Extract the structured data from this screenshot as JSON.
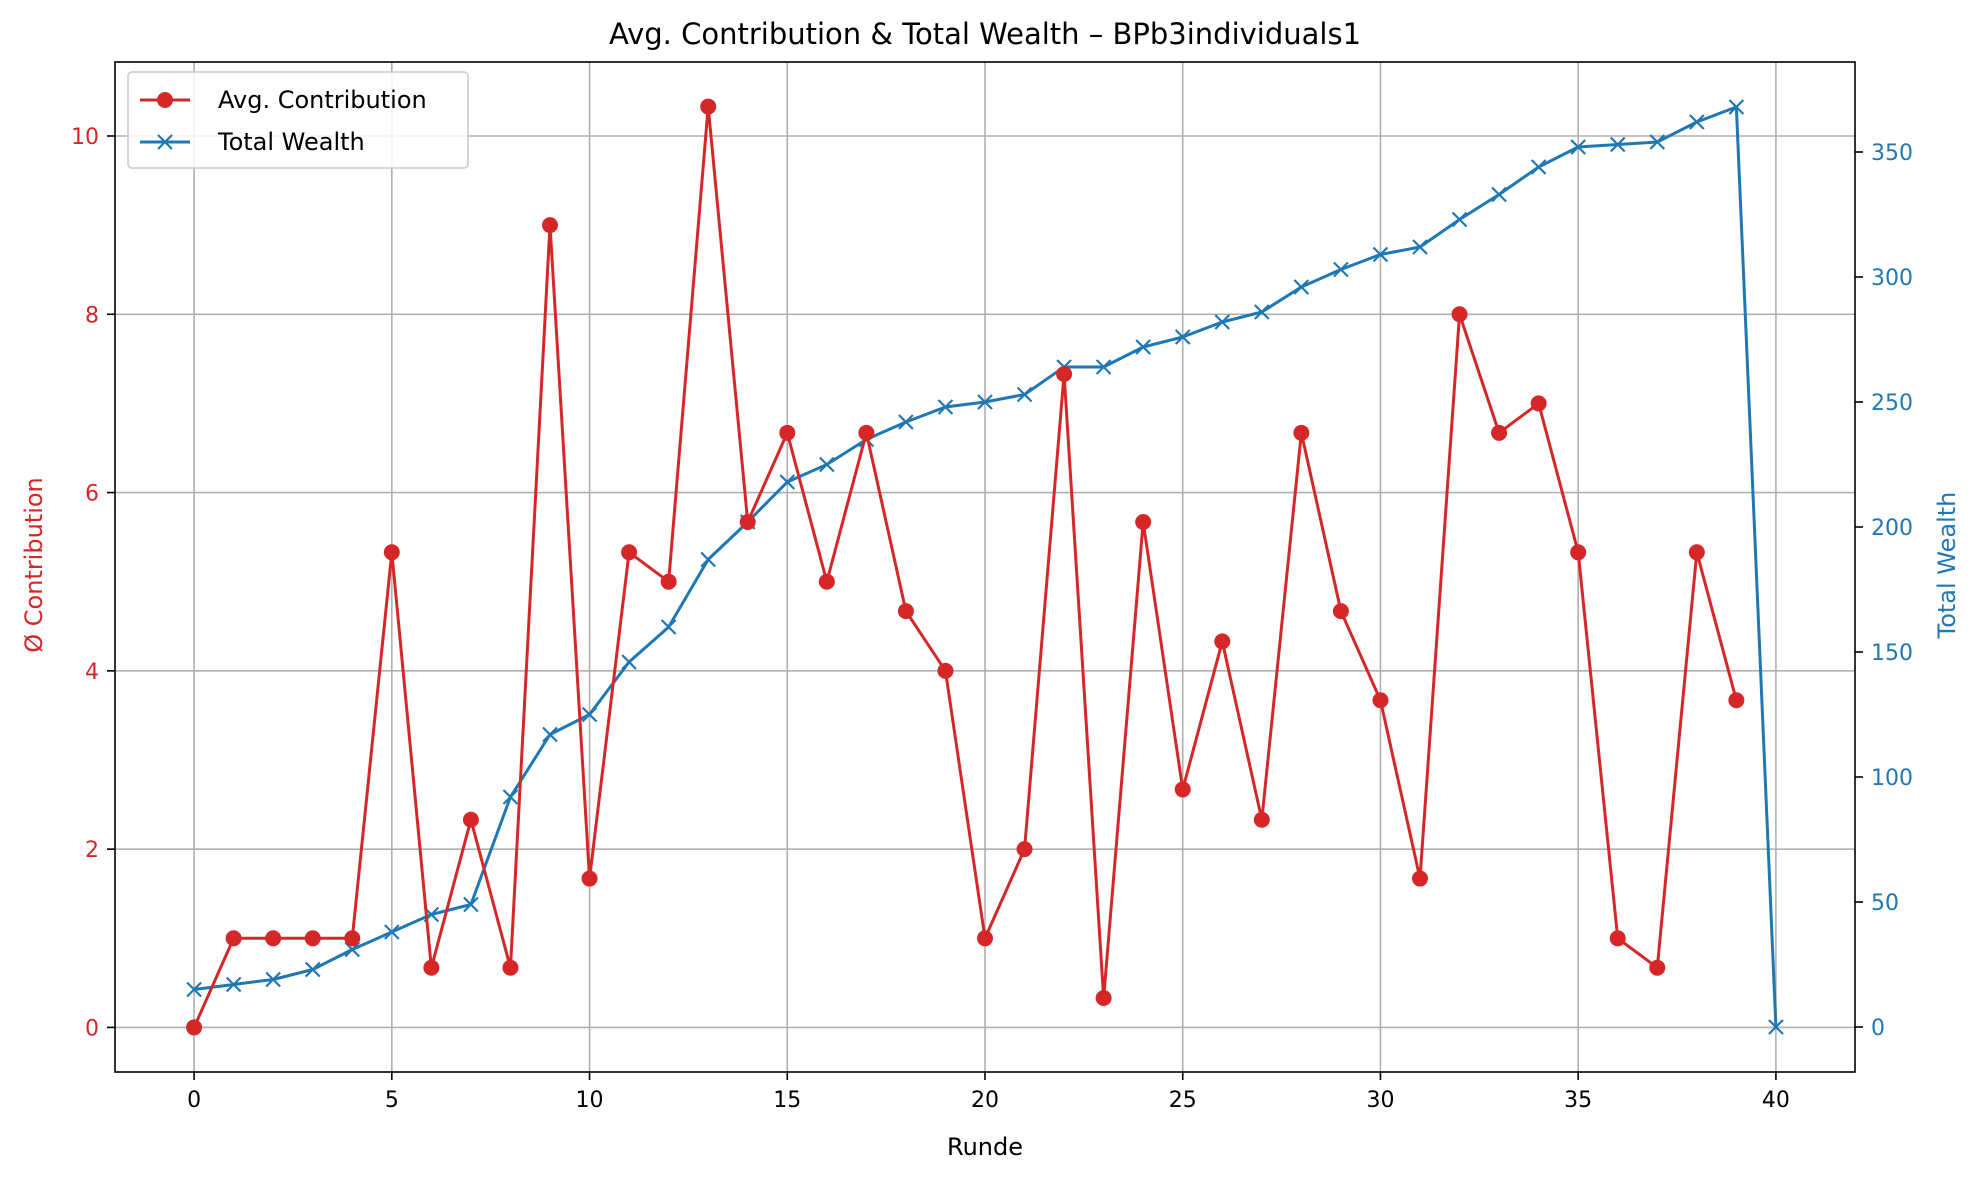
{
  "chart_data": {
    "type": "line",
    "title": "Avg. Contribution & Total Wealth – BPb3individuals1",
    "xlabel": "Runde",
    "ylabel_left": "Ø Contribution",
    "ylabel_right": "Total Wealth",
    "xlim": [
      -2,
      42
    ],
    "ylim_left": [
      -0.5,
      10.83
    ],
    "ylim_right": [
      -18,
      386
    ],
    "x_ticks": [
      0,
      5,
      10,
      15,
      20,
      25,
      30,
      35,
      40
    ],
    "y_ticks_left": [
      0,
      2,
      4,
      6,
      8,
      10
    ],
    "y_ticks_right": [
      0,
      50,
      100,
      150,
      200,
      250,
      300,
      350
    ],
    "grid": true,
    "legend_position": "upper-left",
    "colors": {
      "contribution": "#d62728",
      "wealth": "#1f77b4",
      "grid": "#b0b0b0"
    },
    "series": [
      {
        "name": "Avg. Contribution",
        "axis": "left",
        "marker": "circle",
        "x": [
          0,
          1,
          2,
          3,
          4,
          5,
          6,
          7,
          8,
          9,
          10,
          11,
          12,
          13,
          14,
          15,
          16,
          17,
          18,
          19,
          20,
          21,
          22,
          23,
          24,
          25,
          26,
          27,
          28,
          29,
          30,
          31,
          32,
          33,
          34,
          35,
          36,
          37,
          38,
          39
        ],
        "values": [
          0,
          1,
          1,
          1,
          1,
          5.33,
          0.67,
          2.33,
          0.67,
          9,
          1.67,
          5.33,
          5,
          10.33,
          5.67,
          6.67,
          5,
          6.67,
          4.67,
          4,
          1,
          2,
          7.33,
          0.33,
          5.67,
          2.67,
          4.33,
          2.33,
          6.67,
          4.67,
          3.67,
          1.67,
          8,
          6.67,
          7,
          5.33,
          1,
          0.67,
          5.33,
          3.67
        ]
      },
      {
        "name": "Total Wealth",
        "axis": "right",
        "marker": "x",
        "x": [
          0,
          1,
          2,
          3,
          4,
          5,
          6,
          7,
          8,
          9,
          10,
          11,
          12,
          13,
          14,
          15,
          16,
          17,
          18,
          19,
          20,
          21,
          22,
          23,
          24,
          25,
          26,
          27,
          28,
          29,
          30,
          31,
          32,
          33,
          34,
          35,
          36,
          37,
          38,
          39,
          40
        ],
        "values": [
          15,
          17,
          19,
          23,
          31,
          38,
          45,
          49,
          92,
          117,
          125,
          146,
          160,
          187,
          202,
          218,
          225,
          235,
          242,
          248,
          250,
          253,
          264,
          264,
          272,
          276,
          282,
          286,
          296,
          303,
          309,
          312,
          323,
          333,
          344,
          352,
          353,
          354,
          362,
          368,
          0
        ]
      }
    ]
  }
}
